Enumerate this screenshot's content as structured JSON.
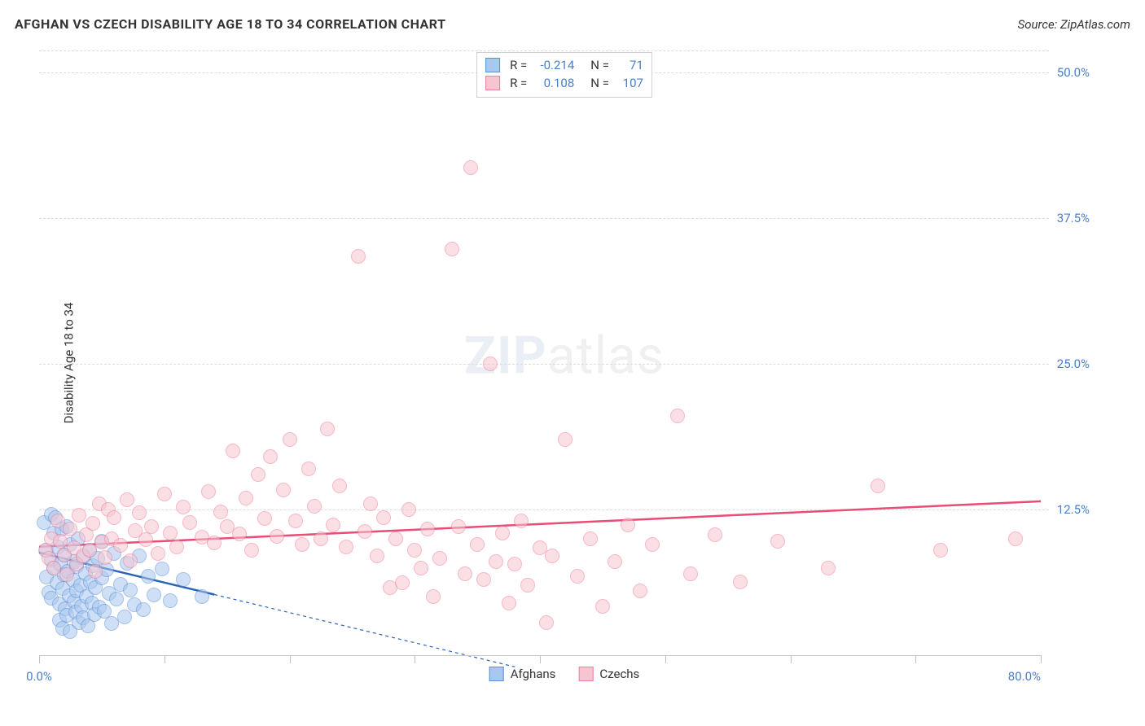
{
  "title": "AFGHAN VS CZECH DISABILITY AGE 18 TO 34 CORRELATION CHART",
  "source": "Source: ZipAtlas.com",
  "ylabel": "Disability Age 18 to 34",
  "watermark": {
    "zip": "ZIP",
    "atlas": "atlas"
  },
  "chart": {
    "type": "scatter",
    "background_color": "#ffffff",
    "grid_color": "#dcdcdc",
    "text_color": "#333333",
    "tick_label_color": "#4a7ec9",
    "xlim": [
      0,
      80
    ],
    "ylim": [
      0,
      52
    ],
    "x_ticks": [
      0,
      10,
      20,
      30,
      40,
      50,
      60,
      70,
      80
    ],
    "x_tick_labels": {
      "0": "0.0%",
      "80": "80.0%"
    },
    "y_ticks": [
      12.5,
      25.0,
      37.5,
      50.0
    ],
    "y_tick_labels": [
      "12.5%",
      "25.0%",
      "37.5%",
      "50.0%"
    ],
    "marker_radius": 9,
    "marker_opacity": 0.55,
    "series": [
      {
        "name": "Afghans",
        "fill_color": "#a8c8f0",
        "border_color": "#5b8fd6",
        "line_color": "#2a63b4",
        "r": "-0.214",
        "n": "71",
        "trend": {
          "x1": 0,
          "y1": 8.8,
          "x2": 14,
          "y2": 5.2,
          "x1_dash": 14,
          "y1_dash": 5.2,
          "x2_dash": 38,
          "y2_dash": -1.0
        },
        "points": [
          [
            0.4,
            11.4
          ],
          [
            0.6,
            9.0
          ],
          [
            0.6,
            6.7
          ],
          [
            0.8,
            5.4
          ],
          [
            1.0,
            12.1
          ],
          [
            1.0,
            8.2
          ],
          [
            1.0,
            4.9
          ],
          [
            1.2,
            10.5
          ],
          [
            1.2,
            7.5
          ],
          [
            1.3,
            11.8
          ],
          [
            1.4,
            6.2
          ],
          [
            1.5,
            9.3
          ],
          [
            1.6,
            4.4
          ],
          [
            1.6,
            3.0
          ],
          [
            1.7,
            7.8
          ],
          [
            1.8,
            10.8
          ],
          [
            1.9,
            5.7
          ],
          [
            1.9,
            2.3
          ],
          [
            2.0,
            8.6
          ],
          [
            2.0,
            6.9
          ],
          [
            2.1,
            4.0
          ],
          [
            2.2,
            11.0
          ],
          [
            2.2,
            3.4
          ],
          [
            2.3,
            7.2
          ],
          [
            2.4,
            5.1
          ],
          [
            2.5,
            9.5
          ],
          [
            2.5,
            2.0
          ],
          [
            2.7,
            6.4
          ],
          [
            2.8,
            4.6
          ],
          [
            2.8,
            8.0
          ],
          [
            2.9,
            3.7
          ],
          [
            3.0,
            7.6
          ],
          [
            3.0,
            5.5
          ],
          [
            3.1,
            10.0
          ],
          [
            3.2,
            2.8
          ],
          [
            3.3,
            6.0
          ],
          [
            3.4,
            4.2
          ],
          [
            3.5,
            8.4
          ],
          [
            3.5,
            3.2
          ],
          [
            3.7,
            7.0
          ],
          [
            3.8,
            5.0
          ],
          [
            3.9,
            2.5
          ],
          [
            4.0,
            9.0
          ],
          [
            4.1,
            6.3
          ],
          [
            4.2,
            4.5
          ],
          [
            4.3,
            7.7
          ],
          [
            4.4,
            3.5
          ],
          [
            4.5,
            5.8
          ],
          [
            4.7,
            8.3
          ],
          [
            4.8,
            4.1
          ],
          [
            5.0,
            6.6
          ],
          [
            5.0,
            9.8
          ],
          [
            5.2,
            3.8
          ],
          [
            5.4,
            7.3
          ],
          [
            5.6,
            5.3
          ],
          [
            5.8,
            2.7
          ],
          [
            6.0,
            8.7
          ],
          [
            6.2,
            4.8
          ],
          [
            6.5,
            6.1
          ],
          [
            6.8,
            3.3
          ],
          [
            7.0,
            7.9
          ],
          [
            7.3,
            5.6
          ],
          [
            7.6,
            4.3
          ],
          [
            8.0,
            8.5
          ],
          [
            8.3,
            3.9
          ],
          [
            8.7,
            6.8
          ],
          [
            9.2,
            5.2
          ],
          [
            9.8,
            7.4
          ],
          [
            10.5,
            4.7
          ],
          [
            11.5,
            6.5
          ],
          [
            13.0,
            5.0
          ]
        ]
      },
      {
        "name": "Czechs",
        "fill_color": "#f7c5d1",
        "border_color": "#ef7f9a",
        "line_color": "#e84c77",
        "r": "0.108",
        "n": "107",
        "trend": {
          "x1": 0,
          "y1": 9.3,
          "x2": 80,
          "y2": 13.2
        },
        "points": [
          [
            0.5,
            9.0
          ],
          [
            0.8,
            8.3
          ],
          [
            1.0,
            10.0
          ],
          [
            1.2,
            7.5
          ],
          [
            1.5,
            11.5
          ],
          [
            1.7,
            9.8
          ],
          [
            2.0,
            8.6
          ],
          [
            2.2,
            6.9
          ],
          [
            2.5,
            10.8
          ],
          [
            2.8,
            9.2
          ],
          [
            3.0,
            7.8
          ],
          [
            3.2,
            12.0
          ],
          [
            3.5,
            8.5
          ],
          [
            3.8,
            10.3
          ],
          [
            4.0,
            9.0
          ],
          [
            4.3,
            11.3
          ],
          [
            4.5,
            7.2
          ],
          [
            4.8,
            13.0
          ],
          [
            5.0,
            9.7
          ],
          [
            5.3,
            8.4
          ],
          [
            5.5,
            12.5
          ],
          [
            5.8,
            10.0
          ],
          [
            6.0,
            11.8
          ],
          [
            6.5,
            9.4
          ],
          [
            7.0,
            13.3
          ],
          [
            7.3,
            8.1
          ],
          [
            7.7,
            10.7
          ],
          [
            8.0,
            12.2
          ],
          [
            8.5,
            9.9
          ],
          [
            9.0,
            11.0
          ],
          [
            9.5,
            8.7
          ],
          [
            10.0,
            13.8
          ],
          [
            10.5,
            10.5
          ],
          [
            11.0,
            9.3
          ],
          [
            11.5,
            12.7
          ],
          [
            12.0,
            11.4
          ],
          [
            13.0,
            10.1
          ],
          [
            13.5,
            14.0
          ],
          [
            14.0,
            9.6
          ],
          [
            14.5,
            12.3
          ],
          [
            15.0,
            11.0
          ],
          [
            15.5,
            17.5
          ],
          [
            16.0,
            10.4
          ],
          [
            16.5,
            13.5
          ],
          [
            17.0,
            9.0
          ],
          [
            17.5,
            15.5
          ],
          [
            18.0,
            11.7
          ],
          [
            18.5,
            17.0
          ],
          [
            19.0,
            10.2
          ],
          [
            19.5,
            14.2
          ],
          [
            20.0,
            18.5
          ],
          [
            20.5,
            11.5
          ],
          [
            21.0,
            9.5
          ],
          [
            21.5,
            16.0
          ],
          [
            22.0,
            12.8
          ],
          [
            22.5,
            10.0
          ],
          [
            23.0,
            19.4
          ],
          [
            23.5,
            11.2
          ],
          [
            24.0,
            14.5
          ],
          [
            24.5,
            9.3
          ],
          [
            25.5,
            34.2
          ],
          [
            26.0,
            10.6
          ],
          [
            26.5,
            13.0
          ],
          [
            27.0,
            8.5
          ],
          [
            27.5,
            11.8
          ],
          [
            28.0,
            5.8
          ],
          [
            28.5,
            10.0
          ],
          [
            29.0,
            6.2
          ],
          [
            29.5,
            12.5
          ],
          [
            30.0,
            9.0
          ],
          [
            30.5,
            7.5
          ],
          [
            31.0,
            10.8
          ],
          [
            31.5,
            5.0
          ],
          [
            32.0,
            8.3
          ],
          [
            33.0,
            34.8
          ],
          [
            33.5,
            11.0
          ],
          [
            34.0,
            7.0
          ],
          [
            34.5,
            41.8
          ],
          [
            35.0,
            9.5
          ],
          [
            35.5,
            6.5
          ],
          [
            36.0,
            25.0
          ],
          [
            36.5,
            8.0
          ],
          [
            37.0,
            10.5
          ],
          [
            37.5,
            4.5
          ],
          [
            38.0,
            7.8
          ],
          [
            38.5,
            11.5
          ],
          [
            39.0,
            6.0
          ],
          [
            40.0,
            9.2
          ],
          [
            40.5,
            2.8
          ],
          [
            41.0,
            8.5
          ],
          [
            42.0,
            18.5
          ],
          [
            43.0,
            6.8
          ],
          [
            44.0,
            10.0
          ],
          [
            45.0,
            4.2
          ],
          [
            46.0,
            8.0
          ],
          [
            47.0,
            11.2
          ],
          [
            48.0,
            5.5
          ],
          [
            49.0,
            9.5
          ],
          [
            51.0,
            20.5
          ],
          [
            52.0,
            7.0
          ],
          [
            54.0,
            10.3
          ],
          [
            56.0,
            6.3
          ],
          [
            59.0,
            9.8
          ],
          [
            63.0,
            7.5
          ],
          [
            67.0,
            14.5
          ],
          [
            72.0,
            9.0
          ],
          [
            78.0,
            10.0
          ]
        ]
      }
    ]
  },
  "legend_bottom": [
    {
      "label": "Afghans",
      "fill": "#a8c8f0",
      "border": "#5b8fd6"
    },
    {
      "label": "Czechs",
      "fill": "#f7c5d1",
      "border": "#ef7f9a"
    }
  ]
}
